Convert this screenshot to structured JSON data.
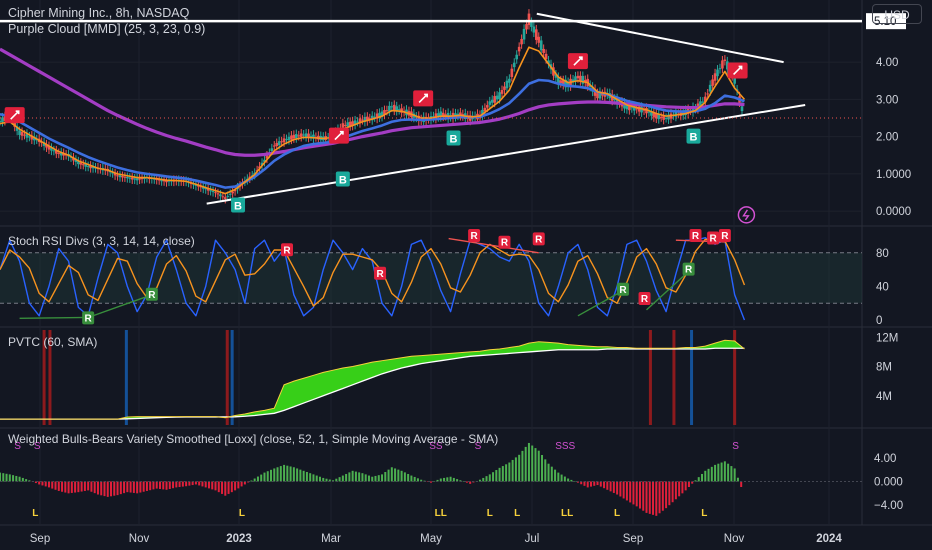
{
  "header": {
    "symbol_title": "Cipher Mining Inc., 8h, NASDAQ",
    "main_indicator": "Purple Cloud [MMD] (25, 3, 23, 0.9)",
    "currency_button": "USD"
  },
  "panes": {
    "stoch_title": "Stoch RSI Divs (3, 3, 14, 14, close)",
    "pvtc_title": "PVTC  (60, SMA)",
    "bulls_title": "Weighted Bulls-Bears Variety Smoothed [Loxx] (close, 52, 1, Simple Moving Average - SMA)"
  },
  "colors": {
    "background": "#131722",
    "grid": "#1e222d",
    "price_up": "#26a69a",
    "price_down": "#ef5350",
    "ema_fast": "#f7931e",
    "ema_slow": "#3d6fe0",
    "ema_long": "#a33dc4",
    "trendline": "#ffffff",
    "pvt_fill": "#39d918",
    "histogram_up": "#4caf50",
    "histogram_down": "#e0203b",
    "signal_label": "#e0203b",
    "buy_label": "#19a99b",
    "s_marker": "#d252d2",
    "l_marker": "#f7d23c"
  },
  "chart_data": {
    "type": "line",
    "title": "Cipher Mining Inc., 8h, NASDAQ",
    "x_axis_labels": [
      "Sep",
      "Nov",
      "2023",
      "Mar",
      "May",
      "Jul",
      "Sep",
      "Nov",
      "2024"
    ],
    "price_axis": {
      "ticks": [
        "4.00",
        "3.00",
        "2.00",
        "1.0000",
        "0.0000"
      ],
      "horizontal_line_label": "5.10",
      "horizontal_line_value": 5.1,
      "ylim": [
        0,
        5.3
      ]
    },
    "price_series": {
      "name": "Price",
      "x": [
        0,
        10,
        20,
        30,
        40,
        50,
        60,
        70,
        80,
        90,
        100,
        110,
        120,
        130,
        140,
        150,
        160,
        170,
        180,
        190,
        200,
        210,
        220,
        230,
        240,
        250,
        260,
        270,
        280,
        290,
        300,
        310,
        320,
        330,
        340,
        350,
        360,
        370,
        380,
        390,
        400,
        410,
        420,
        430,
        440,
        450,
        460,
        470,
        480,
        490,
        500,
        510,
        520,
        530,
        540,
        550,
        560,
        570,
        580,
        590,
        600,
        610,
        620,
        630,
        640,
        650,
        660,
        670,
        680,
        690,
        700,
        710,
        720,
        730,
        740,
        750,
        760
      ],
      "values": [
        2.42,
        2.55,
        2.1,
        2.0,
        1.9,
        1.7,
        1.55,
        1.5,
        1.3,
        1.2,
        1.15,
        1.1,
        0.95,
        0.9,
        0.85,
        0.9,
        0.85,
        0.8,
        0.82,
        0.8,
        0.7,
        0.6,
        0.5,
        0.35,
        0.55,
        0.8,
        1.0,
        1.35,
        1.75,
        1.9,
        2.0,
        2.05,
        2.0,
        1.95,
        2.0,
        2.3,
        2.35,
        2.45,
        2.5,
        2.6,
        2.8,
        2.7,
        2.6,
        2.45,
        2.5,
        2.6,
        2.55,
        2.6,
        2.5,
        2.55,
        2.9,
        3.1,
        3.5,
        4.35,
        5.15,
        4.6,
        4.0,
        3.5,
        3.4,
        3.6,
        3.45,
        3.1,
        3.15,
        2.95,
        2.8,
        2.75,
        2.7,
        2.55,
        2.5,
        2.6,
        2.65,
        2.75,
        3.0,
        3.6,
        4.05,
        3.5,
        2.5
      ]
    },
    "ema_fast_values": [
      2.35,
      2.4,
      2.2,
      2.05,
      1.9,
      1.75,
      1.6,
      1.5,
      1.35,
      1.25,
      1.15,
      1.1,
      1.0,
      0.95,
      0.9,
      0.9,
      0.87,
      0.83,
      0.82,
      0.8,
      0.72,
      0.63,
      0.55,
      0.47,
      0.58,
      0.78,
      0.98,
      1.3,
      1.62,
      1.8,
      1.92,
      1.98,
      1.97,
      1.95,
      1.98,
      2.2,
      2.3,
      2.4,
      2.47,
      2.55,
      2.7,
      2.68,
      2.6,
      2.5,
      2.5,
      2.55,
      2.55,
      2.57,
      2.53,
      2.55,
      2.75,
      2.95,
      3.25,
      3.85,
      4.4,
      4.3,
      3.95,
      3.6,
      3.45,
      3.5,
      3.45,
      3.2,
      3.15,
      3.0,
      2.85,
      2.78,
      2.72,
      2.62,
      2.55,
      2.58,
      2.62,
      2.7,
      2.92,
      3.35,
      3.75,
      3.3,
      3.0
    ],
    "ema_slow_values": [
      2.6,
      2.55,
      2.4,
      2.25,
      2.1,
      1.95,
      1.82,
      1.7,
      1.57,
      1.45,
      1.35,
      1.26,
      1.17,
      1.1,
      1.04,
      1.0,
      0.97,
      0.93,
      0.9,
      0.87,
      0.82,
      0.76,
      0.7,
      0.63,
      0.66,
      0.78,
      0.92,
      1.12,
      1.35,
      1.52,
      1.65,
      1.75,
      1.8,
      1.83,
      1.86,
      1.97,
      2.06,
      2.15,
      2.22,
      2.3,
      2.4,
      2.45,
      2.46,
      2.45,
      2.46,
      2.48,
      2.5,
      2.52,
      2.52,
      2.53,
      2.62,
      2.74,
      2.9,
      3.15,
      3.42,
      3.52,
      3.5,
      3.42,
      3.36,
      3.34,
      3.3,
      3.2,
      3.13,
      3.05,
      2.96,
      2.9,
      2.84,
      2.76,
      2.7,
      2.68,
      2.67,
      2.68,
      2.75,
      2.9,
      3.1,
      3.05,
      2.95
    ],
    "ema_long_values": [
      4.35,
      4.2,
      4.05,
      3.9,
      3.75,
      3.6,
      3.45,
      3.3,
      3.15,
      3.0,
      2.85,
      2.7,
      2.57,
      2.45,
      2.33,
      2.22,
      2.12,
      2.03,
      1.95,
      1.88,
      1.8,
      1.72,
      1.65,
      1.57,
      1.52,
      1.5,
      1.5,
      1.52,
      1.56,
      1.6,
      1.65,
      1.7,
      1.74,
      1.78,
      1.82,
      1.88,
      1.94,
      2.0,
      2.05,
      2.1,
      2.16,
      2.2,
      2.24,
      2.26,
      2.28,
      2.3,
      2.32,
      2.34,
      2.36,
      2.38,
      2.42,
      2.47,
      2.54,
      2.62,
      2.72,
      2.8,
      2.85,
      2.88,
      2.9,
      2.92,
      2.93,
      2.93,
      2.92,
      2.9,
      2.88,
      2.86,
      2.84,
      2.82,
      2.8,
      2.79,
      2.78,
      2.78,
      2.8,
      2.84,
      2.88,
      2.88,
      2.86
    ],
    "stoch_axis_ticks": [
      "80",
      "40",
      "0"
    ],
    "stoch_k_values": [
      60,
      95,
      70,
      20,
      5,
      40,
      85,
      70,
      15,
      5,
      50,
      90,
      80,
      40,
      10,
      30,
      75,
      95,
      60,
      20,
      5,
      40,
      95,
      80,
      60,
      20,
      85,
      95,
      70,
      85,
      30,
      5,
      15,
      60,
      95,
      80,
      60,
      85,
      70,
      20,
      5,
      40,
      90,
      95,
      70,
      35,
      10,
      55,
      95,
      90,
      85,
      75,
      70,
      90,
      70,
      20,
      5,
      40,
      80,
      90,
      60,
      15,
      5,
      40,
      90,
      95,
      70,
      35,
      10,
      55,
      95,
      95,
      98,
      90,
      95,
      30,
      0
    ],
    "stoch_axis_ylim": [
      0,
      100
    ],
    "pvtc_axis_ticks": [
      "12M",
      "8M",
      "4M"
    ],
    "pvt_values": [
      0.8,
      0.8,
      0.8,
      0.8,
      0.8,
      0.8,
      0.8,
      0.8,
      0.8,
      0.8,
      0.8,
      0.8,
      0.8,
      1.1,
      1.15,
      1.15,
      1.15,
      1.15,
      1.15,
      1.15,
      1.15,
      1.15,
      1.15,
      1.0,
      1.3,
      1.5,
      1.8,
      2.0,
      2.3,
      5.5,
      6.0,
      6.4,
      6.8,
      7.2,
      7.5,
      7.8,
      8.0,
      8.3,
      8.6,
      8.8,
      9.0,
      9.2,
      9.4,
      9.5,
      9.6,
      9.7,
      9.8,
      9.9,
      10.0,
      10.1,
      10.3,
      10.4,
      10.6,
      10.8,
      11.2,
      11.4,
      11.3,
      11.2,
      11.0,
      10.9,
      10.8,
      10.7,
      10.7,
      10.6,
      10.6,
      10.5,
      10.5,
      10.5,
      10.5,
      10.5,
      10.6,
      10.6,
      10.8,
      11.2,
      11.6,
      11.5,
      10.4
    ],
    "pvt_signal_values": [
      0.8,
      0.8,
      0.8,
      0.8,
      0.8,
      0.8,
      0.8,
      0.8,
      0.8,
      0.8,
      0.8,
      0.8,
      0.8,
      0.85,
      0.9,
      0.95,
      1.0,
      1.05,
      1.08,
      1.1,
      1.1,
      1.1,
      1.1,
      1.1,
      1.12,
      1.2,
      1.3,
      1.45,
      1.6,
      2.0,
      2.5,
      3.0,
      3.5,
      4.0,
      4.5,
      5.0,
      5.5,
      6.0,
      6.5,
      7.0,
      7.4,
      7.8,
      8.1,
      8.4,
      8.6,
      8.8,
      9.0,
      9.2,
      9.4,
      9.5,
      9.6,
      9.7,
      9.8,
      9.9,
      10.0,
      10.1,
      10.2,
      10.3,
      10.3,
      10.3,
      10.3,
      10.3,
      10.4,
      10.4,
      10.4,
      10.4,
      10.4,
      10.4,
      10.4,
      10.4,
      10.4,
      10.4,
      10.4,
      10.5,
      10.5,
      10.5,
      10.5
    ],
    "pvtc_ylim": [
      0,
      13
    ],
    "bulls_axis_ticks": [
      "4.00",
      "0.000",
      "−4.00"
    ],
    "bulls_values": [
      1.5,
      1.2,
      0.8,
      0.2,
      -0.5,
      -1.0,
      -1.6,
      -2.0,
      -1.8,
      -1.5,
      -2.2,
      -2.6,
      -2.3,
      -1.8,
      -2.0,
      -1.6,
      -1.2,
      -1.4,
      -1.0,
      -0.8,
      -0.5,
      -1.0,
      -1.5,
      -2.4,
      -1.5,
      -0.5,
      0.5,
      1.5,
      2.2,
      2.8,
      2.4,
      1.8,
      1.2,
      0.6,
      0.2,
      1.0,
      1.8,
      1.4,
      0.8,
      1.2,
      2.4,
      1.8,
      1.0,
      0.3,
      -0.2,
      0.5,
      0.8,
      0.2,
      -0.4,
      0.3,
      1.2,
      2.3,
      3.2,
      4.5,
      6.5,
      5.2,
      3.0,
      1.5,
      0.5,
      -0.2,
      -1.0,
      -0.6,
      -1.4,
      -2.2,
      -3.2,
      -4.2,
      -5.3,
      -5.8,
      -4.5,
      -3.0,
      -1.5,
      0.2,
      1.8,
      2.8,
      3.4,
      2.2,
      -2.5
    ],
    "bulls_ylim": [
      -6.5,
      7
    ],
    "price_annotations": {
      "rocket_labels": 6,
      "b_labels": [
        "B",
        "B",
        "B",
        "B"
      ]
    },
    "stoch_annotations": {
      "bear_labels": [
        "R",
        "R",
        "R",
        "R",
        "R",
        "R",
        "R",
        "R",
        "R"
      ],
      "bull_labels": [
        "R",
        "R",
        "R",
        "R",
        "R",
        "R"
      ]
    },
    "bulls_markers": {
      "s_labels": [
        "S",
        "S",
        "SS",
        "S",
        "SSS",
        "S"
      ],
      "l_labels": [
        "L",
        "L",
        "LL",
        "L",
        "L",
        "LL",
        "L",
        "L"
      ]
    }
  }
}
